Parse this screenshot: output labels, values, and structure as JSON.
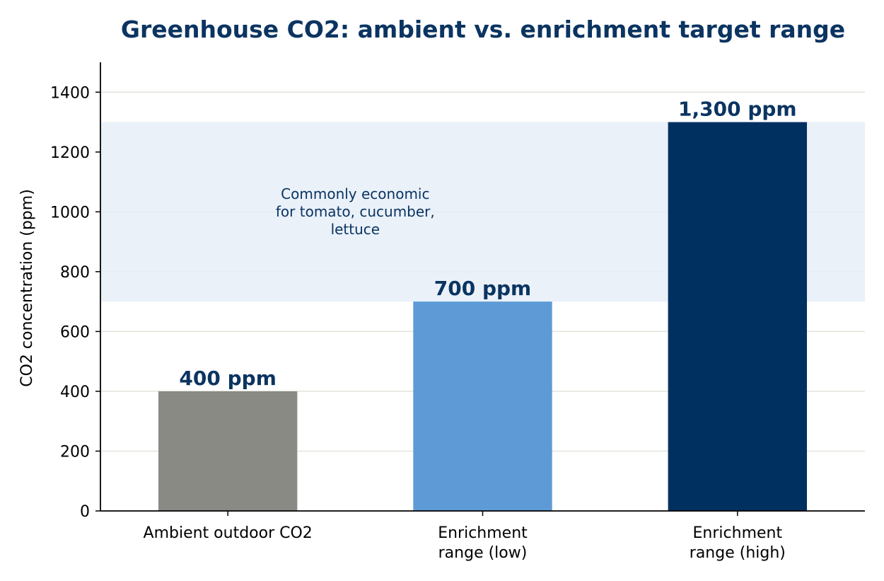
{
  "colors": {
    "title": "#0b3461",
    "grid": "#e3e3dc",
    "band": "#e6eff8",
    "axis": "#000000",
    "annotation": "#0b3461"
  },
  "chart_data": {
    "type": "bar",
    "title": "Greenhouse CO2: ambient vs. enrichment target range",
    "xlabel": "",
    "ylabel": "CO2 concentration (ppm)",
    "ylim": [
      0,
      1500
    ],
    "yticks": [
      0,
      200,
      400,
      600,
      800,
      1000,
      1200,
      1400
    ],
    "grid": true,
    "legend": "none",
    "categories": [
      [
        "Ambient outdoor CO2"
      ],
      [
        "Enrichment",
        "range (low)"
      ],
      [
        "Enrichment",
        "range (high)"
      ]
    ],
    "values": [
      400,
      700,
      1300
    ],
    "bar_colors": [
      "#8a8a85",
      "#5e9bd6",
      "#003060"
    ],
    "data_labels": [
      "400 ppm",
      "700 ppm",
      "1,300 ppm"
    ],
    "band": {
      "from": 700,
      "to": 1300,
      "label_lines": [
        "Commonly economic",
        "for tomato, cucumber,",
        "lettuce"
      ]
    }
  }
}
